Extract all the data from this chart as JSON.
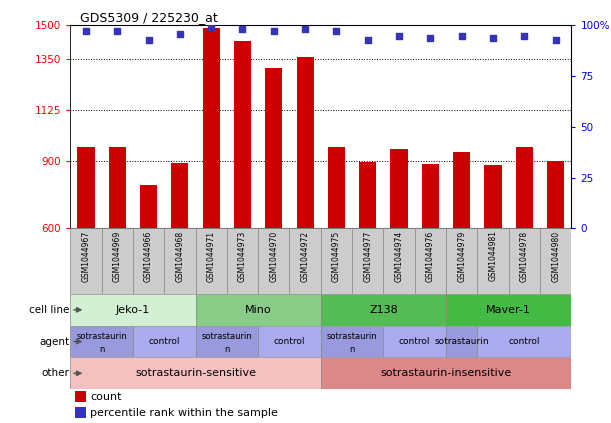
{
  "title": "GDS5309 / 225230_at",
  "samples": [
    "GSM1044967",
    "GSM1044969",
    "GSM1044966",
    "GSM1044968",
    "GSM1044971",
    "GSM1044973",
    "GSM1044970",
    "GSM1044972",
    "GSM1044975",
    "GSM1044977",
    "GSM1044974",
    "GSM1044976",
    "GSM1044979",
    "GSM1044981",
    "GSM1044978",
    "GSM1044980"
  ],
  "counts": [
    960,
    962,
    793,
    888,
    1487,
    1430,
    1310,
    1360,
    960,
    895,
    950,
    885,
    940,
    880,
    960,
    900
  ],
  "percentiles": [
    97,
    97,
    93,
    96,
    99,
    98,
    97,
    98,
    97,
    93,
    95,
    94,
    95,
    94,
    95,
    93
  ],
  "ylim_left": [
    600,
    1500
  ],
  "ylim_right": [
    0,
    100
  ],
  "yticks_left": [
    600,
    900,
    1125,
    1350,
    1500
  ],
  "yticks_right": [
    0,
    25,
    50,
    75,
    100
  ],
  "bar_color": "#cc0000",
  "dot_color": "#3333bb",
  "cell_line_data": [
    {
      "label": "Jeko-1",
      "start": 0,
      "end": 4,
      "color": "#d4f0d4"
    },
    {
      "label": "Mino",
      "start": 4,
      "end": 8,
      "color": "#88cc88"
    },
    {
      "label": "Z138",
      "start": 8,
      "end": 12,
      "color": "#55bb55"
    },
    {
      "label": "Maver-1",
      "start": 12,
      "end": 16,
      "color": "#44bb44"
    }
  ],
  "agent_row": [
    {
      "label": "sotrastaurin\nn",
      "start": 0,
      "end": 2,
      "color": "#9999dd"
    },
    {
      "label": "control",
      "start": 2,
      "end": 4,
      "color": "#aaaaee"
    },
    {
      "label": "sotrastaurin\nn",
      "start": 4,
      "end": 6,
      "color": "#9999dd"
    },
    {
      "label": "control",
      "start": 6,
      "end": 8,
      "color": "#aaaaee"
    },
    {
      "label": "sotrastaurin\nn",
      "start": 8,
      "end": 10,
      "color": "#9999dd"
    },
    {
      "label": "control",
      "start": 10,
      "end": 12,
      "color": "#aaaaee"
    },
    {
      "label": "sotrastaurin",
      "start": 12,
      "end": 13,
      "color": "#9999dd"
    },
    {
      "label": "control",
      "start": 13,
      "end": 16,
      "color": "#aaaaee"
    }
  ],
  "other_row": [
    {
      "label": "sotrastaurin-sensitive",
      "start": 0,
      "end": 8,
      "color": "#f4c0c0"
    },
    {
      "label": "sotrastaurin-insensitive",
      "start": 8,
      "end": 16,
      "color": "#dd8888"
    }
  ],
  "legend_count": "count",
  "legend_pct": "percentile rank within the sample"
}
